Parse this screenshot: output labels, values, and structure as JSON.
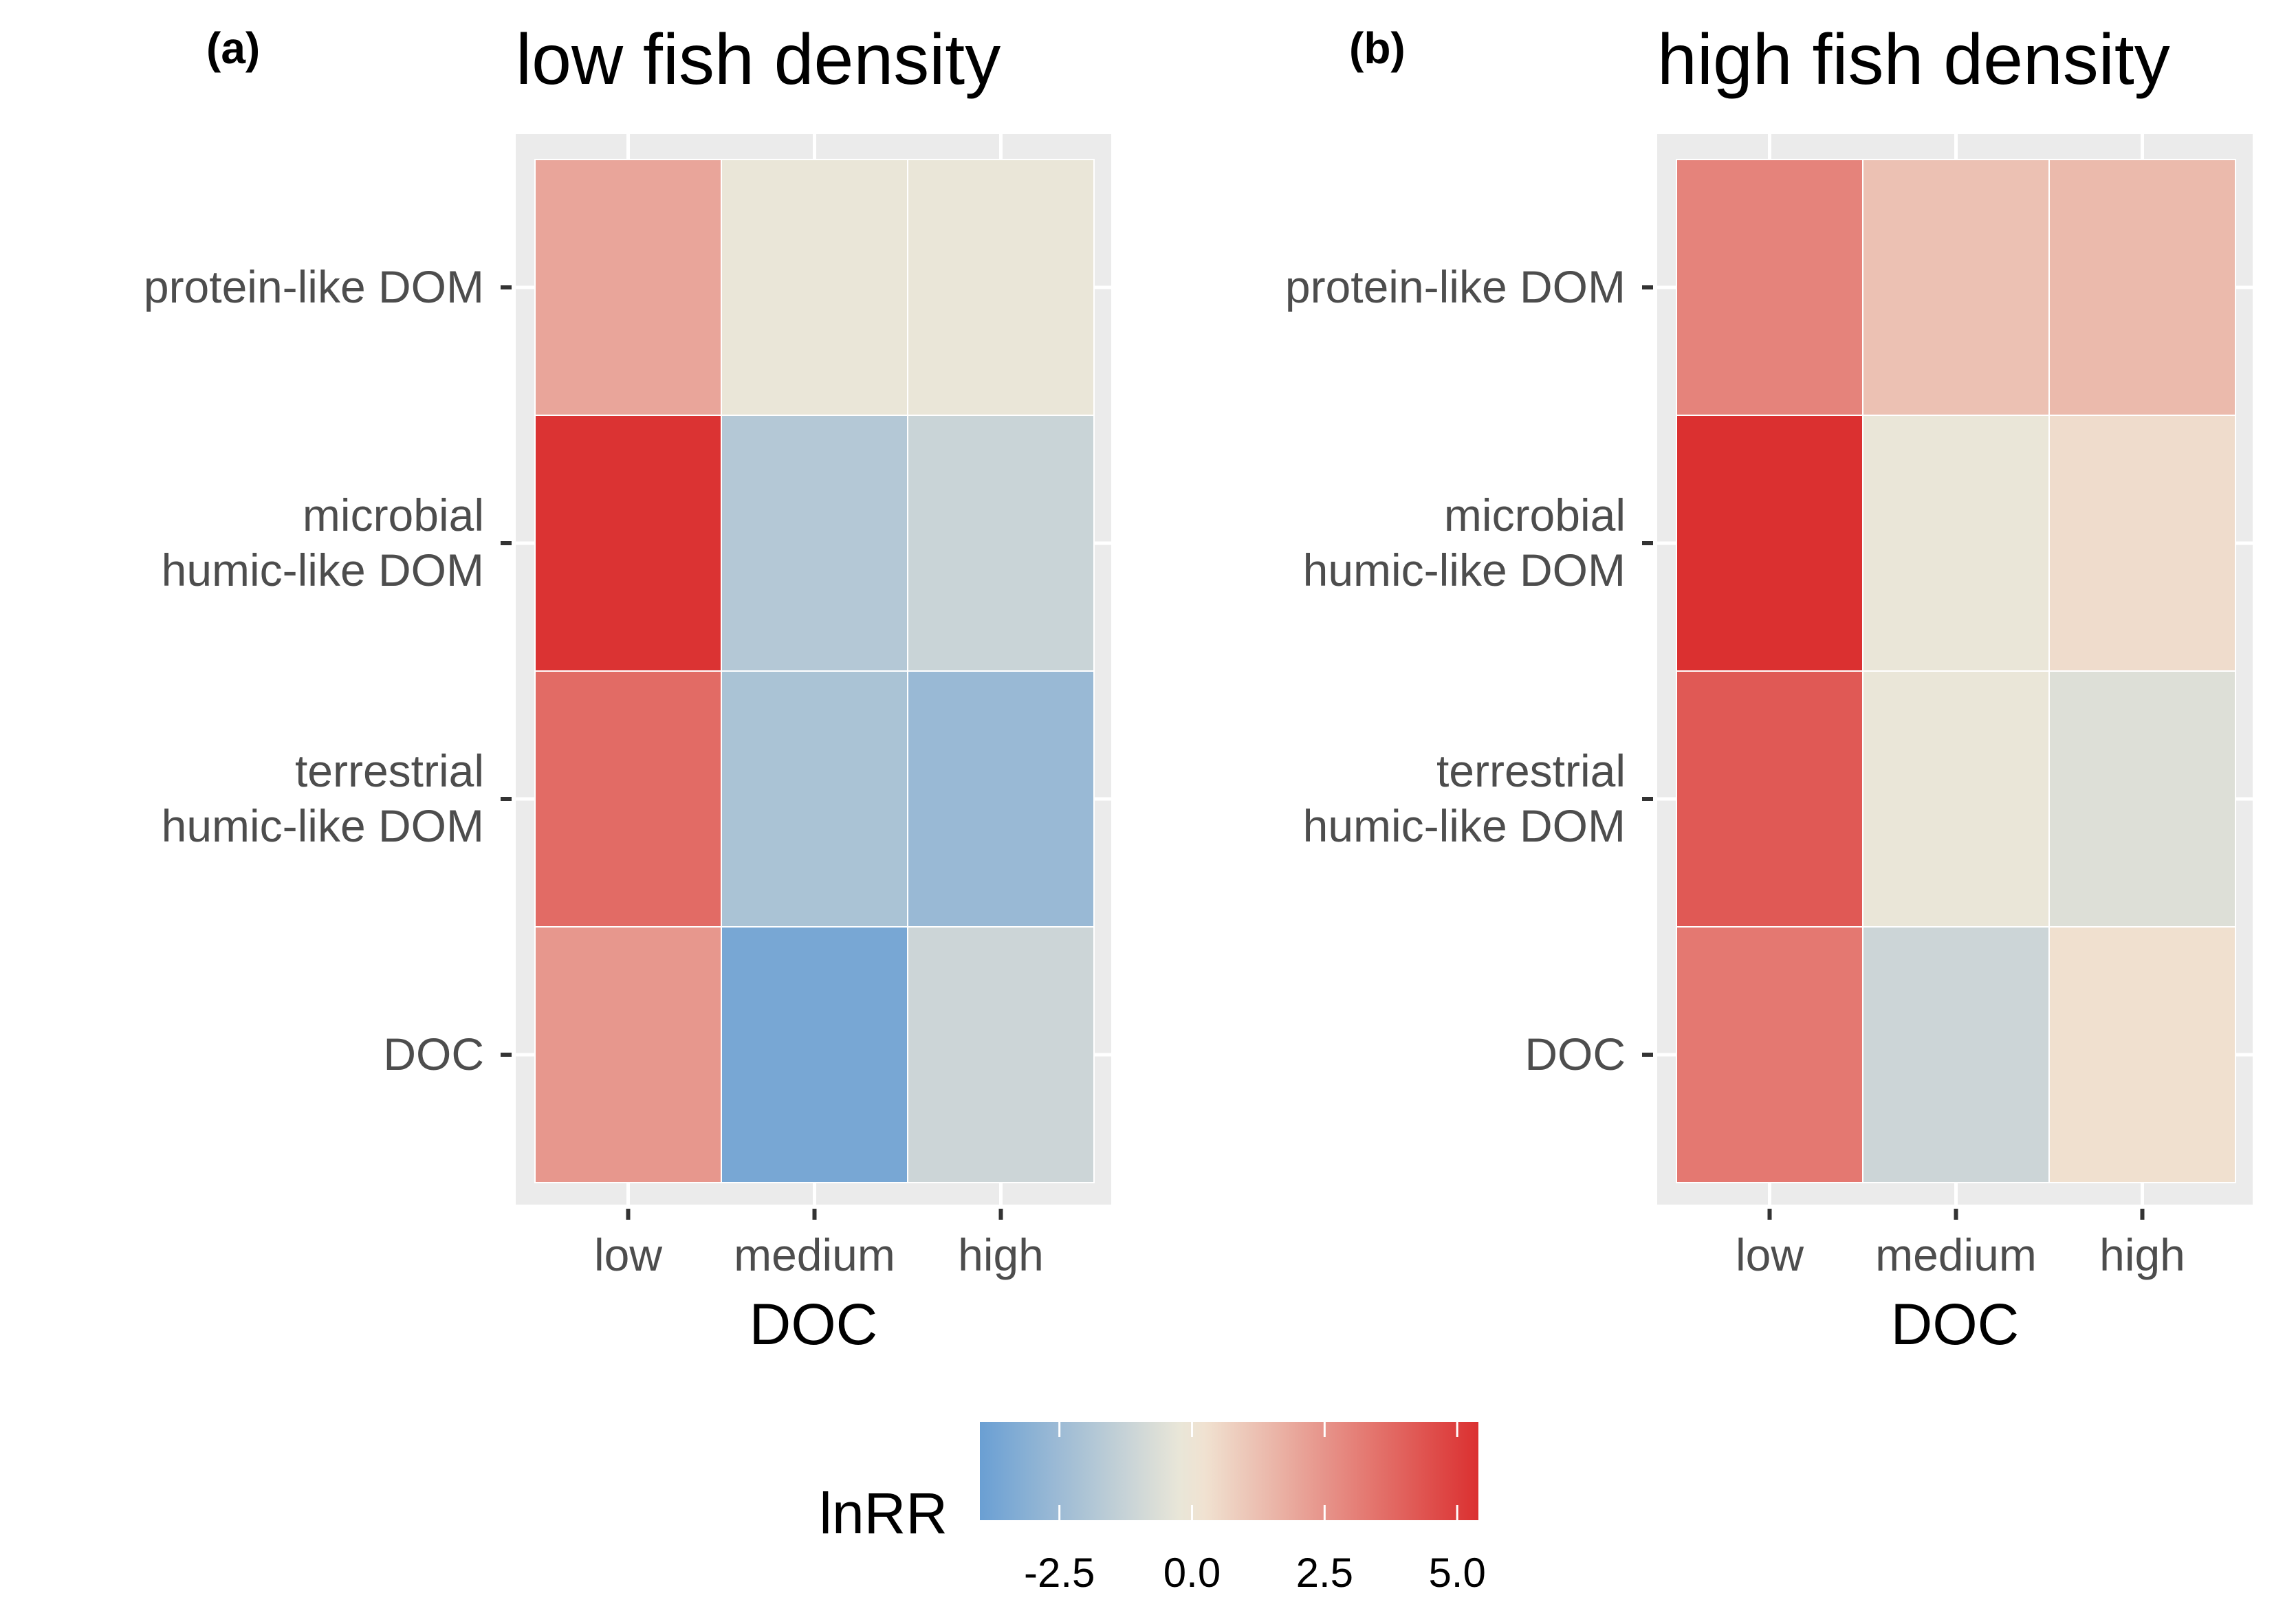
{
  "chart_data": [
    {
      "type": "heatmap",
      "panel_tag": "(a)",
      "title": "low fish density",
      "xlabel": "DOC",
      "x": [
        "low",
        "medium",
        "high"
      ],
      "y": [
        "protein-like DOM",
        "microbial humic-like DOM",
        "terrestrial humic-like DOM",
        "DOC"
      ],
      "y_display": [
        [
          "protein-like DOM"
        ],
        [
          "microbial",
          "humic-like DOM"
        ],
        [
          "terrestrial",
          "humic-like DOM"
        ],
        [
          "DOC"
        ]
      ],
      "values": [
        [
          2.0,
          -0.2,
          -0.2
        ],
        [
          5.3,
          -1.8,
          -1.2
        ],
        [
          3.7,
          -2.1,
          -2.6
        ],
        [
          2.4,
          -3.6,
          -1.1
        ]
      ]
    },
    {
      "type": "heatmap",
      "panel_tag": "(b)",
      "title": "high fish density",
      "xlabel": "DOC",
      "x": [
        "low",
        "medium",
        "high"
      ],
      "y": [
        "protein-like DOM",
        "microbial humic-like DOM",
        "terrestrial humic-like DOM",
        "DOC"
      ],
      "y_display": [
        [
          "protein-like DOM"
        ],
        [
          "microbial",
          "humic-like DOM"
        ],
        [
          "terrestrial",
          "humic-like DOM"
        ],
        [
          "DOC"
        ]
      ],
      "values": [
        [
          3.0,
          1.2,
          1.4
        ],
        [
          5.4,
          -0.2,
          0.4
        ],
        [
          4.2,
          -0.2,
          -0.6
        ],
        [
          3.3,
          -1.1,
          0.3
        ]
      ]
    }
  ],
  "legend": {
    "title": "lnRR",
    "ticks": [
      "-2.5",
      "0.0",
      "2.5",
      "5.0"
    ],
    "tick_values": [
      -2.5,
      0.0,
      2.5,
      5.0
    ],
    "range": [
      -4.0,
      5.4
    ],
    "colors": {
      "low": "#6a9fd3",
      "mid": "#f1ead8",
      "high": "#db3030"
    }
  }
}
